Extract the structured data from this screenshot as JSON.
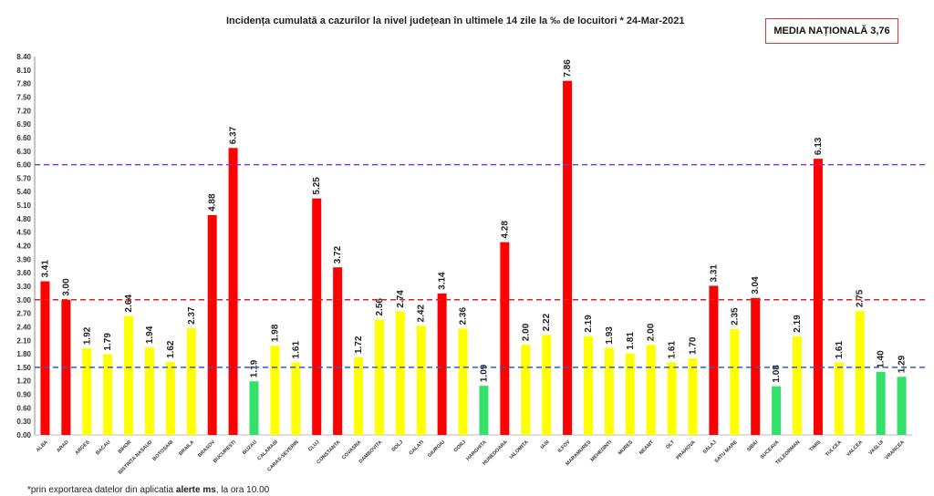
{
  "chart_data": {
    "type": "bar",
    "title": "Incidența cumulată a cazurilor la nivel județean în ultimele 14 zile la ‰ de locuitori * 24-Mar-2021",
    "annotation": "MEDIA NAȚIONALĂ 3,76",
    "footnote_prefix": "*prin exportarea datelor din aplicatia ",
    "footnote_bold": "alerte ms",
    "footnote_suffix": ", la ora 10.00",
    "ylim": [
      0,
      8.4
    ],
    "ytick_step": 0.3,
    "grid": false,
    "categories": [
      "ALBA",
      "ARAD",
      "ARGES",
      "BACAU",
      "BIHOR",
      "BISTRITA NASAUD",
      "BOTOSANI",
      "BRAILA",
      "BRASOV",
      "BUCURESTI",
      "BUZAU",
      "CALARASI",
      "CARAS-SEVERIN",
      "CLUJ",
      "CONSTANTA",
      "COVASNA",
      "DAMBOVITA",
      "DOLJ",
      "GALATI",
      "GIURGIU",
      "GORJ",
      "HARGHITA",
      "HUNEDOARA",
      "IALOMITA",
      "IASI",
      "ILFOV",
      "MARAMURES",
      "MEHEDINTI",
      "MURES",
      "NEAMT",
      "OLT",
      "PRAHOVA",
      "SALAJ",
      "SATU MARE",
      "SIBIU",
      "SUCEAVA",
      "TELEORMAN",
      "TIMIS",
      "TULCEA",
      "VALCEA",
      "VASLUI",
      "VRANCEA"
    ],
    "values": [
      3.41,
      3.0,
      1.92,
      1.79,
      2.64,
      1.94,
      1.62,
      2.37,
      4.88,
      6.37,
      1.19,
      1.98,
      1.61,
      5.25,
      3.72,
      1.72,
      2.56,
      2.74,
      2.42,
      3.14,
      2.36,
      1.09,
      4.28,
      2.0,
      2.22,
      7.86,
      2.19,
      1.93,
      1.81,
      2.0,
      1.61,
      1.7,
      3.31,
      2.35,
      3.04,
      1.08,
      2.19,
      6.13,
      1.61,
      2.75,
      1.4,
      1.29
    ],
    "thresholds": [
      {
        "value": 1.5,
        "color": "#2f5fbf"
      },
      {
        "value": 3.0,
        "color": "#e02020"
      },
      {
        "value": 6.0,
        "color": "#7b3fc4"
      }
    ],
    "colors": {
      "high": "#ff0000",
      "medium": "#ffff00",
      "low": "#33e06a"
    }
  }
}
